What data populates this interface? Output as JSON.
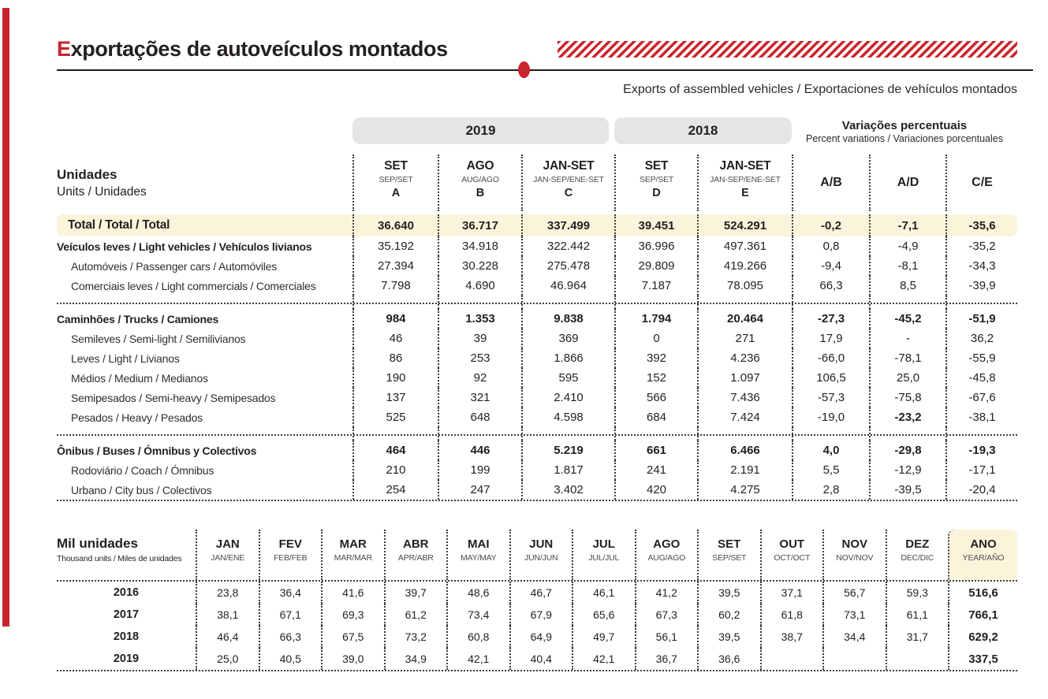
{
  "header": {
    "title_initial": "E",
    "title_rest": "xportações de autoveículos montados",
    "subtitle": "Exports of assembled vehicles / Exportaciones de vehículos montados"
  },
  "colors": {
    "accent_red": "#c9252c",
    "pill_gray": "#e6e5e5",
    "highlight_yellow": "#fbf4db",
    "text": "#231f20"
  },
  "main_table": {
    "unit_label": "Unidades",
    "unit_sublabel": "Units / Unidades",
    "groups": [
      {
        "label": "2019"
      },
      {
        "label": "2018"
      }
    ],
    "variations_header": {
      "title": "Variações percentuais",
      "subtitle": "Percent variations / Variaciones porcentuales"
    },
    "columns": [
      {
        "label": "SET",
        "sublabel": "SEP/SET",
        "letter": "A"
      },
      {
        "label": "AGO",
        "sublabel": "AUG/AGO",
        "letter": "B"
      },
      {
        "label": "JAN-SET",
        "sublabel": "JAN-SEP/ENE-SET",
        "letter": "C"
      },
      {
        "label": "SET",
        "sublabel": "SEP/SET",
        "letter": "D"
      },
      {
        "label": "JAN-SET",
        "sublabel": "JAN-SEP/ENE-SET",
        "letter": "E"
      },
      {
        "label": "A/B"
      },
      {
        "label": "A/D"
      },
      {
        "label": "C/E"
      }
    ],
    "rows": [
      {
        "type": "total",
        "label": "Total / Total / Total",
        "values": [
          "36.640",
          "36.717",
          "337.499",
          "39.451",
          "524.291",
          "-0,2",
          "-7,1",
          "-35,6"
        ]
      },
      {
        "type": "section-lite",
        "label": "Veículos leves / Light vehicles / Vehículos livianos",
        "values": [
          "35.192",
          "34.918",
          "322.442",
          "36.996",
          "497.361",
          "0,8",
          "-4,9",
          "-35,2"
        ]
      },
      {
        "type": "sub",
        "label": "Automóveis / Passenger cars / Automóviles",
        "values": [
          "27.394",
          "30.228",
          "275.478",
          "29.809",
          "419.266",
          "-9,4",
          "-8,1",
          "-34,3"
        ]
      },
      {
        "type": "sub",
        "label": "Comerciais leves / Light commercials / Comerciales",
        "values": [
          "7.798",
          "4.690",
          "46.964",
          "7.187",
          "78.095",
          "66,3",
          "8,5",
          "-39,9"
        ]
      },
      {
        "type": "separator"
      },
      {
        "type": "section",
        "label": "Caminhões / Trucks / Camiones",
        "values": [
          "984",
          "1.353",
          "9.838",
          "1.794",
          "20.464",
          "-27,3",
          "-45,2",
          "-51,9"
        ]
      },
      {
        "type": "sub",
        "label": "Semileves / Semi-light / Semilivianos",
        "values": [
          "46",
          "39",
          "369",
          "0",
          "271",
          "17,9",
          "-",
          "36,2"
        ]
      },
      {
        "type": "sub",
        "label": "Leves / Light / Livianos",
        "values": [
          "86",
          "253",
          "1.866",
          "392",
          "4.236",
          "-66,0",
          "-78,1",
          "-55,9"
        ]
      },
      {
        "type": "sub",
        "label": "Médios / Medium / Medianos",
        "values": [
          "190",
          "92",
          "595",
          "152",
          "1.097",
          "106,5",
          "25,0",
          "-45,8"
        ]
      },
      {
        "type": "sub",
        "label": "Semipesados / Semi-heavy / Semipesados",
        "values": [
          "137",
          "321",
          "2.410",
          "566",
          "7.436",
          "-57,3",
          "-75,8",
          "-67,6"
        ]
      },
      {
        "type": "sub",
        "label": "Pesados / Heavy / Pesados",
        "values": [
          "525",
          "648",
          "4.598",
          "684",
          "7.424",
          "-19,0",
          "-23,2",
          "-38,1"
        ],
        "bold_cols": [
          6
        ]
      },
      {
        "type": "separator"
      },
      {
        "type": "section",
        "label": "Ônibus / Buses / Ómnibus y Colectivos",
        "values": [
          "464",
          "446",
          "5.219",
          "661",
          "6.466",
          "4,0",
          "-29,8",
          "-19,3"
        ]
      },
      {
        "type": "sub",
        "label": "Rodoviário / Coach / Ómnibus",
        "values": [
          "210",
          "199",
          "1.817",
          "241",
          "2.191",
          "5,5",
          "-12,9",
          "-17,1"
        ]
      },
      {
        "type": "sub",
        "label": "Urbano / City bus / Colectivos",
        "values": [
          "254",
          "247",
          "3.402",
          "420",
          "4.275",
          "2,8",
          "-39,5",
          "-20,4"
        ]
      }
    ]
  },
  "monthly_table": {
    "unit_label": "Mil unidades",
    "unit_sublabel": "Thousand units / Miles de unidades",
    "columns": [
      {
        "label": "JAN",
        "sublabel": "JAN/ENE"
      },
      {
        "label": "FEV",
        "sublabel": "FEB/FEB"
      },
      {
        "label": "MAR",
        "sublabel": "MAR/MAR"
      },
      {
        "label": "ABR",
        "sublabel": "APR/ABR"
      },
      {
        "label": "MAI",
        "sublabel": "MAY/MAY"
      },
      {
        "label": "JUN",
        "sublabel": "JUN/JUN"
      },
      {
        "label": "JUL",
        "sublabel": "JUL/JUL"
      },
      {
        "label": "AGO",
        "sublabel": "AUG/AGO"
      },
      {
        "label": "SET",
        "sublabel": "SEP/SET"
      },
      {
        "label": "OUT",
        "sublabel": "OCT/OCT"
      },
      {
        "label": "NOV",
        "sublabel": "NOV/NOV"
      },
      {
        "label": "DEZ",
        "sublabel": "DEC/DIC"
      }
    ],
    "year_column": {
      "label": "ANO",
      "sublabel": "YEAR/AÑO"
    },
    "rows": [
      {
        "year": "2016",
        "values": [
          "23,8",
          "36,4",
          "41,6",
          "39,7",
          "48,6",
          "46,7",
          "46,1",
          "41,2",
          "39,5",
          "37,1",
          "56,7",
          "59,3"
        ],
        "total": "516,6"
      },
      {
        "year": "2017",
        "values": [
          "38,1",
          "67,1",
          "69,3",
          "61,2",
          "73,4",
          "67,9",
          "65,6",
          "67,3",
          "60,2",
          "61,8",
          "73,1",
          "61,1"
        ],
        "total": "766,1"
      },
      {
        "year": "2018",
        "values": [
          "46,4",
          "66,3",
          "67,5",
          "73,2",
          "60,8",
          "64,9",
          "49,7",
          "56,1",
          "39,5",
          "38,7",
          "34,4",
          "31,7"
        ],
        "total": "629,2"
      },
      {
        "year": "2019",
        "values": [
          "25,0",
          "40,5",
          "39,0",
          "34,9",
          "42,1",
          "40,4",
          "42,1",
          "36,7",
          "36,6",
          "",
          "",
          ""
        ],
        "total": "337,5"
      }
    ]
  }
}
